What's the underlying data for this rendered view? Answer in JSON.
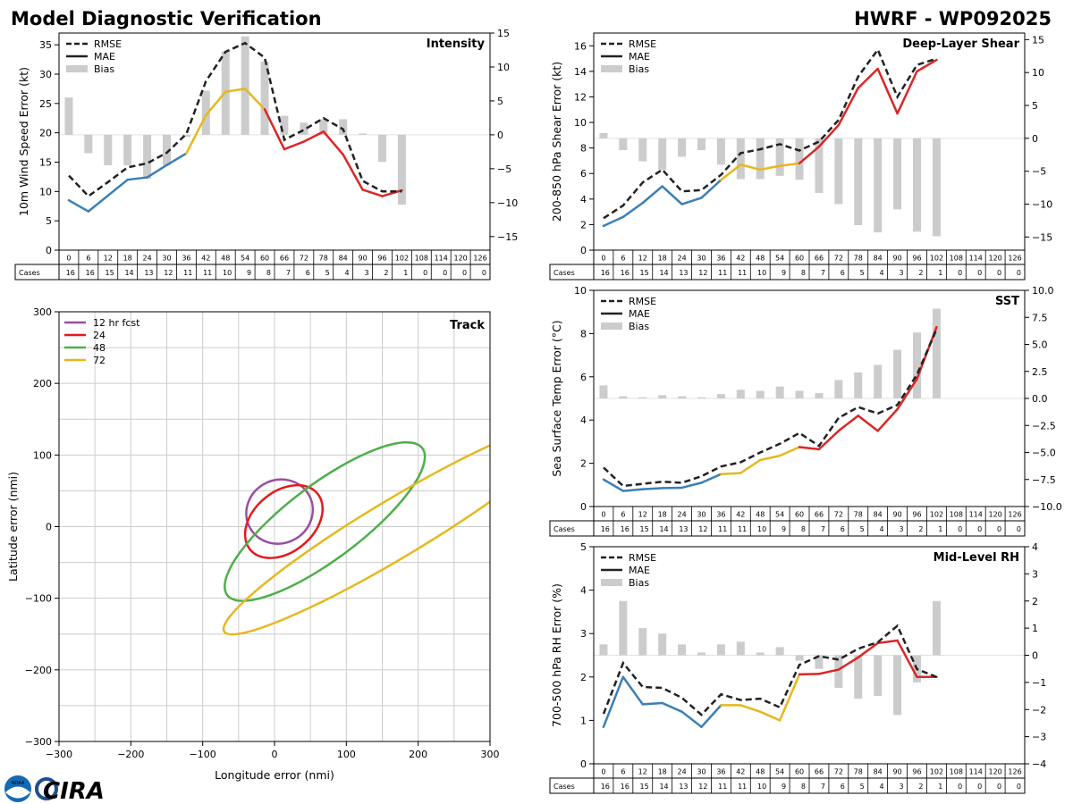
{
  "page": {
    "title_left": "Model Diagnostic Verification",
    "title_right": "HWRF - WP092025",
    "logo_text": "CIRA",
    "noaa_text": "NOAA"
  },
  "colors": {
    "rmse": "#222222",
    "mae_early": "#3a7fb5",
    "mae_mid": "#e6b81e",
    "mae_late": "#dc2626",
    "bias": "#cccccc",
    "grid": "#cccccc",
    "track_12": "#984ea3",
    "track_24": "#e41a1c",
    "track_48": "#4daf4a",
    "track_72": "#e6b81e"
  },
  "chart_data": [
    {
      "id": "intensity",
      "type": "line",
      "title": "Intensity",
      "ylabel": "10m Wind Speed Error (kt)",
      "ylim": [
        0,
        37
      ],
      "yticks": [
        0,
        5,
        10,
        15,
        20,
        25,
        30,
        35
      ],
      "y2lim": [
        -17,
        15
      ],
      "y2ticks": [
        -15,
        -10,
        -5,
        0,
        5,
        10,
        15
      ],
      "legend": [
        "RMSE",
        "MAE",
        "Bias"
      ],
      "x": [
        0,
        6,
        12,
        18,
        24,
        30,
        36,
        42,
        48,
        54,
        60,
        66,
        72,
        78,
        84,
        90,
        96,
        102,
        108,
        114,
        120,
        126
      ],
      "cases": [
        16,
        16,
        15,
        14,
        13,
        12,
        11,
        11,
        10,
        9,
        8,
        7,
        6,
        5,
        4,
        3,
        2,
        1,
        0,
        0,
        0,
        0
      ],
      "rmse": [
        12.7,
        9.2,
        11.6,
        14.1,
        14.8,
        16.6,
        19.8,
        28.8,
        33.8,
        35.3,
        32.8,
        18.8,
        20.5,
        22.5,
        20.6,
        11.8,
        10,
        10
      ],
      "mae": [
        8.5,
        6.6,
        9.3,
        12,
        12.4,
        14.5,
        16.5,
        23,
        27,
        27.5,
        24,
        17.2,
        18.5,
        20.2,
        16.3,
        10.3,
        9.2,
        10.2
      ],
      "bias": [
        5.5,
        -2.7,
        -4.5,
        -4.5,
        -6.5,
        -4.5,
        -0.3,
        6.5,
        12.3,
        14.5,
        10.8,
        2.8,
        1.8,
        2.3,
        2.3,
        0.2,
        -4,
        -10.3
      ]
    },
    {
      "id": "shear",
      "type": "line",
      "title": "Deep-Layer Shear",
      "ylabel": "200-850 hPa Shear Error (kt)",
      "ylim": [
        0,
        17
      ],
      "yticks": [
        0,
        2,
        4,
        6,
        8,
        10,
        12,
        14,
        16
      ],
      "y2lim": [
        -17,
        16
      ],
      "y2ticks": [
        -15,
        -10,
        -5,
        0,
        5,
        10,
        15
      ],
      "legend": [
        "RMSE",
        "MAE",
        "Bias"
      ],
      "x": [
        0,
        6,
        12,
        18,
        24,
        30,
        36,
        42,
        48,
        54,
        60,
        66,
        72,
        78,
        84,
        90,
        96,
        102,
        108,
        114,
        120,
        126
      ],
      "cases": [
        16,
        16,
        15,
        14,
        13,
        12,
        11,
        11,
        10,
        9,
        8,
        7,
        6,
        5,
        4,
        3,
        2,
        1,
        0,
        0,
        0,
        0
      ],
      "rmse": [
        2.5,
        3.5,
        5.3,
        6.3,
        4.6,
        4.7,
        5.9,
        7.6,
        7.9,
        8.3,
        7.8,
        8.5,
        10.2,
        13.6,
        15.7,
        12,
        14.5,
        15
      ],
      "mae": [
        1.9,
        2.6,
        3.7,
        5,
        3.6,
        4.1,
        5.5,
        6.7,
        6.3,
        6.6,
        6.8,
        8.1,
        9.8,
        12.7,
        14.2,
        10.7,
        14,
        14.9
      ],
      "bias": [
        0.8,
        -1.8,
        -3.5,
        -4.8,
        -2.8,
        -1.8,
        -4,
        -6.2,
        -6.2,
        -5.7,
        -6.3,
        -8.3,
        -10,
        -13.2,
        -14.3,
        -10.8,
        -14.2,
        -14.9
      ]
    },
    {
      "id": "sst",
      "type": "line",
      "title": "SST",
      "ylabel": "Sea Surface Temp Error (°C)",
      "ylim": [
        0,
        10
      ],
      "yticks": [
        0,
        2,
        4,
        6,
        8,
        10
      ],
      "y2lim": [
        -10,
        10
      ],
      "y2ticks": [
        -10.0,
        -7.5,
        -5.0,
        -2.5,
        0.0,
        2.5,
        5.0,
        7.5,
        10.0
      ],
      "legend": [
        "RMSE",
        "MAE",
        "Bias"
      ],
      "x": [
        0,
        6,
        12,
        18,
        24,
        30,
        36,
        42,
        48,
        54,
        60,
        66,
        72,
        78,
        84,
        90,
        96,
        102,
        108,
        114,
        120,
        126
      ],
      "cases": [
        16,
        16,
        15,
        14,
        13,
        12,
        11,
        11,
        10,
        9,
        8,
        7,
        6,
        5,
        4,
        3,
        2,
        1,
        0,
        0,
        0,
        0
      ],
      "rmse": [
        1.8,
        0.95,
        1.05,
        1.15,
        1.1,
        1.4,
        1.85,
        2.05,
        2.5,
        2.9,
        3.4,
        2.8,
        4.1,
        4.6,
        4.3,
        4.7,
        6.1,
        8.2
      ],
      "mae": [
        1.25,
        0.72,
        0.8,
        0.85,
        0.87,
        1.1,
        1.5,
        1.55,
        2.15,
        2.35,
        2.75,
        2.65,
        3.5,
        4.2,
        3.5,
        4.5,
        5.9,
        8.3
      ],
      "bias": [
        1.2,
        0.2,
        0.1,
        0.3,
        0.2,
        0.1,
        0.4,
        0.8,
        0.7,
        1.1,
        0.7,
        0.5,
        1.7,
        2.4,
        3.1,
        4.5,
        6.1,
        8.3
      ]
    },
    {
      "id": "rh",
      "type": "line",
      "title": "Mid-Level RH",
      "ylabel": "700-500 hPa RH Error (%)",
      "ylim": [
        0,
        5
      ],
      "yticks": [
        0,
        1,
        2,
        3,
        4,
        5
      ],
      "y2lim": [
        -4,
        4
      ],
      "y2ticks": [
        -4,
        -3,
        -2,
        -1,
        0,
        1,
        2,
        3,
        4
      ],
      "legend": [
        "RMSE",
        "MAE",
        "Bias"
      ],
      "x": [
        0,
        6,
        12,
        18,
        24,
        30,
        36,
        42,
        48,
        54,
        60,
        66,
        72,
        78,
        84,
        90,
        96,
        102,
        108,
        114,
        120,
        126
      ],
      "cases": [
        16,
        16,
        15,
        14,
        13,
        12,
        11,
        11,
        10,
        9,
        8,
        7,
        6,
        5,
        4,
        3,
        2,
        1,
        0,
        0,
        0,
        0
      ],
      "rmse": [
        1.15,
        2.32,
        1.77,
        1.75,
        1.52,
        1.13,
        1.6,
        1.47,
        1.5,
        1.3,
        2.28,
        2.48,
        2.4,
        2.65,
        2.8,
        3.18,
        2.18,
        2.0
      ],
      "mae": [
        0.85,
        2.0,
        1.37,
        1.4,
        1.2,
        0.85,
        1.35,
        1.35,
        1.2,
        1.0,
        2.06,
        2.07,
        2.17,
        2.45,
        2.78,
        2.84,
        2.0,
        2.0
      ],
      "bias": [
        0.4,
        2.0,
        1.0,
        0.8,
        0.4,
        0.1,
        0.4,
        0.5,
        0.1,
        0.3,
        -0.2,
        -0.5,
        -1.2,
        -1.6,
        -1.5,
        -2.2,
        -1.0,
        2.0
      ]
    },
    {
      "id": "track",
      "type": "line",
      "title": "Track",
      "xlabel": "Longitude error (nmi)",
      "ylabel": "Latitude error (nmi)",
      "xlim": [
        -300,
        300
      ],
      "ylim": [
        -300,
        300
      ],
      "xticks": [
        -300,
        -200,
        -100,
        0,
        100,
        200,
        300
      ],
      "yticks": [
        -300,
        -200,
        -100,
        0,
        100,
        200,
        300
      ],
      "xtick_labels": [
        "−300",
        "−200",
        "−100",
        "0",
        "100",
        "200",
        "300"
      ],
      "ytick_labels": [
        "−300",
        "−200",
        "−100",
        "0",
        "100",
        "200",
        "300"
      ],
      "series": [
        {
          "name": "12 hr fcst",
          "cx": 7,
          "cy": 21,
          "a": 47,
          "b": 44,
          "angle": 30
        },
        {
          "name": "24",
          "cx": 13,
          "cy": 7,
          "a": 61,
          "b": 42,
          "angle": 40
        },
        {
          "name": "48",
          "cx": 70,
          "cy": 7,
          "a": 170,
          "b": 52,
          "angle": 37
        },
        {
          "name": "72",
          "cx": 170,
          "cy": -2,
          "a": 280,
          "b": 40,
          "angle": 31
        }
      ]
    }
  ]
}
